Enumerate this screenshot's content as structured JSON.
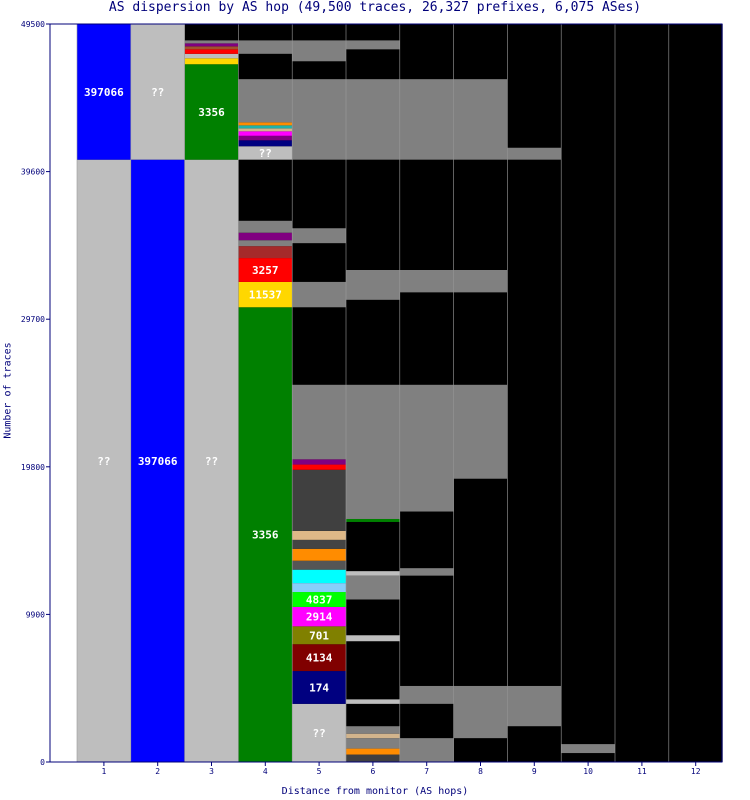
{
  "chart_data": {
    "type": "bar",
    "title": "AS dispersion by AS hop (49,500 traces, 26,327 prefixes, 6,075 ASes)",
    "xlabel": "Distance from monitor (AS hops)",
    "ylabel": "Number of traces",
    "ylim": [
      0,
      49500
    ],
    "y_ticks": [
      "0",
      "9900",
      "19800",
      "29700",
      "39600",
      "49500"
    ],
    "categories": [
      "1",
      "2",
      "3",
      "4",
      "5",
      "6",
      "7",
      "8",
      "9",
      "10",
      "11",
      "12"
    ],
    "background_color": "#000000",
    "frame_color": "#00007a",
    "columns": [
      {
        "hop": "1",
        "segments": [
          {
            "as": "??",
            "color": "#bebebe",
            "from": 0,
            "to": 40400,
            "label": "??"
          },
          {
            "as": "397066",
            "color": "#0000ff",
            "from": 40400,
            "to": 49500,
            "label": "397066"
          }
        ]
      },
      {
        "hop": "2",
        "segments": [
          {
            "as": "397066",
            "color": "#0000ff",
            "from": 0,
            "to": 40400,
            "label": "397066"
          },
          {
            "as": "??",
            "color": "#bebebe",
            "from": 40400,
            "to": 49500,
            "label": "??"
          }
        ]
      },
      {
        "hop": "3",
        "segments": [
          {
            "as": "??",
            "color": "#bebebe",
            "from": 0,
            "to": 40400,
            "label": "??"
          },
          {
            "as": "3356",
            "color": "#008000",
            "from": 40400,
            "to": 46800,
            "label": "3356"
          },
          {
            "as": "",
            "color": "#ffd700",
            "from": 46800,
            "to": 47200,
            "label": ""
          },
          {
            "as": "",
            "color": "#bebebe",
            "from": 47200,
            "to": 47500,
            "label": ""
          },
          {
            "as": "",
            "color": "#ff0000",
            "from": 47500,
            "to": 47800,
            "label": ""
          },
          {
            "as": "",
            "color": "#a0522d",
            "from": 47800,
            "to": 48000,
            "label": ""
          },
          {
            "as": "",
            "color": "#800080",
            "from": 48000,
            "to": 48200,
            "label": ""
          },
          {
            "as": "",
            "color": "#808080",
            "from": 48200,
            "to": 48400,
            "label": ""
          }
        ]
      },
      {
        "hop": "4",
        "segments": [
          {
            "as": "3356",
            "color": "#008000",
            "from": 0,
            "to": 30500,
            "label": "3356"
          },
          {
            "as": "11537",
            "color": "#ffd700",
            "from": 30500,
            "to": 32200,
            "label": "11537"
          },
          {
            "as": "3257",
            "color": "#ff0000",
            "from": 32200,
            "to": 33800,
            "label": "3257"
          },
          {
            "as": "",
            "color": "#a52a2a",
            "from": 33800,
            "to": 34600,
            "label": ""
          },
          {
            "as": "",
            "color": "#808080",
            "from": 34600,
            "to": 35000,
            "label": ""
          },
          {
            "as": "",
            "color": "#800080",
            "from": 35000,
            "to": 35500,
            "label": ""
          },
          {
            "as": "",
            "color": "#808080",
            "from": 35500,
            "to": 36300,
            "label": ""
          },
          {
            "as": "??",
            "color": "#bebebe",
            "from": 40400,
            "to": 41300,
            "label": "??"
          },
          {
            "as": "",
            "color": "#000080",
            "from": 41300,
            "to": 41700,
            "label": ""
          },
          {
            "as": "",
            "color": "#800080",
            "from": 41700,
            "to": 42000,
            "label": ""
          },
          {
            "as": "",
            "color": "#ff00ff",
            "from": 42000,
            "to": 42300,
            "label": ""
          },
          {
            "as": "",
            "color": "#d2b48c",
            "from": 42300,
            "to": 42500,
            "label": ""
          },
          {
            "as": "",
            "color": "#20b2aa",
            "from": 42500,
            "to": 42700,
            "label": ""
          },
          {
            "as": "",
            "color": "#ff8c00",
            "from": 42700,
            "to": 42900,
            "label": ""
          },
          {
            "as": "",
            "color": "#808080",
            "from": 42900,
            "to": 45800,
            "label": ""
          },
          {
            "as": "",
            "color": "#808080",
            "from": 47500,
            "to": 48400,
            "label": ""
          }
        ]
      },
      {
        "hop": "5",
        "segments": [
          {
            "as": "??",
            "color": "#bebebe",
            "from": 0,
            "to": 3900,
            "label": "??"
          },
          {
            "as": "174",
            "color": "#000080",
            "from": 3900,
            "to": 6100,
            "label": "174"
          },
          {
            "as": "4134",
            "color": "#800000",
            "from": 6100,
            "to": 7900,
            "label": "4134"
          },
          {
            "as": "701",
            "color": "#808000",
            "from": 7900,
            "to": 9100,
            "label": "701"
          },
          {
            "as": "2914",
            "color": "#ff00ff",
            "from": 9100,
            "to": 10400,
            "label": "2914"
          },
          {
            "as": "4837",
            "color": "#00ff00",
            "from": 10400,
            "to": 11400,
            "label": "4837"
          },
          {
            "as": "",
            "color": "#87cefa",
            "from": 11400,
            "to": 12000,
            "label": ""
          },
          {
            "as": "",
            "color": "#00ffff",
            "from": 12000,
            "to": 12900,
            "label": ""
          },
          {
            "as": "",
            "color": "#555555",
            "from": 12900,
            "to": 13500,
            "label": ""
          },
          {
            "as": "",
            "color": "#ff8c00",
            "from": 13500,
            "to": 14300,
            "label": ""
          },
          {
            "as": "",
            "color": "#444444",
            "from": 14300,
            "to": 14900,
            "label": ""
          },
          {
            "as": "",
            "color": "#deb887",
            "from": 14900,
            "to": 15500,
            "label": ""
          },
          {
            "as": "",
            "color": "#404040",
            "from": 15500,
            "to": 19600,
            "label": ""
          },
          {
            "as": "",
            "color": "#ff0000",
            "from": 19600,
            "to": 19950,
            "label": ""
          },
          {
            "as": "",
            "color": "#800080",
            "from": 19950,
            "to": 20300,
            "label": ""
          },
          {
            "as": "",
            "color": "#808080",
            "from": 20300,
            "to": 25300,
            "label": ""
          },
          {
            "as": "",
            "color": "#808080",
            "from": 30500,
            "to": 32200,
            "label": ""
          },
          {
            "as": "",
            "color": "#808080",
            "from": 34800,
            "to": 35800,
            "label": ""
          },
          {
            "as": "",
            "color": "#808080",
            "from": 40400,
            "to": 45800,
            "label": ""
          },
          {
            "as": "",
            "color": "#808080",
            "from": 47000,
            "to": 48400,
            "label": ""
          }
        ]
      },
      {
        "hop": "6",
        "segments": [
          {
            "as": "",
            "color": "#404040",
            "from": 0,
            "to": 500,
            "label": ""
          },
          {
            "as": "",
            "color": "#ff8c00",
            "from": 500,
            "to": 900,
            "label": ""
          },
          {
            "as": "",
            "color": "#808080",
            "from": 900,
            "to": 1600,
            "label": ""
          },
          {
            "as": "",
            "color": "#d2b48c",
            "from": 1600,
            "to": 1900,
            "label": ""
          },
          {
            "as": "",
            "color": "#808080",
            "from": 1900,
            "to": 2400,
            "label": ""
          },
          {
            "as": "",
            "color": "#bebebe",
            "from": 3900,
            "to": 4200,
            "label": ""
          },
          {
            "as": "",
            "color": "#bebebe",
            "from": 8100,
            "to": 8500,
            "label": ""
          },
          {
            "as": "",
            "color": "#808080",
            "from": 10900,
            "to": 12500,
            "label": ""
          },
          {
            "as": "",
            "color": "#bebebe",
            "from": 12500,
            "to": 12800,
            "label": ""
          },
          {
            "as": "",
            "color": "#008000",
            "from": 16100,
            "to": 16300,
            "label": ""
          },
          {
            "as": "",
            "color": "#808080",
            "from": 16300,
            "to": 25300,
            "label": ""
          },
          {
            "as": "",
            "color": "#808080",
            "from": 31000,
            "to": 33000,
            "label": ""
          },
          {
            "as": "",
            "color": "#808080",
            "from": 40400,
            "to": 45800,
            "label": ""
          },
          {
            "as": "",
            "color": "#808080",
            "from": 47800,
            "to": 48400,
            "label": ""
          }
        ]
      },
      {
        "hop": "7",
        "segments": [
          {
            "as": "",
            "color": "#808080",
            "from": 0,
            "to": 1600,
            "label": ""
          },
          {
            "as": "",
            "color": "#808080",
            "from": 3900,
            "to": 5100,
            "label": ""
          },
          {
            "as": "",
            "color": "#808080",
            "from": 12500,
            "to": 13000,
            "label": ""
          },
          {
            "as": "",
            "color": "#808080",
            "from": 16800,
            "to": 25300,
            "label": ""
          },
          {
            "as": "",
            "color": "#808080",
            "from": 31500,
            "to": 33000,
            "label": ""
          },
          {
            "as": "",
            "color": "#808080",
            "from": 40400,
            "to": 45800,
            "label": ""
          }
        ]
      },
      {
        "hop": "8",
        "segments": [
          {
            "as": "",
            "color": "#808080",
            "from": 1600,
            "to": 5100,
            "label": ""
          },
          {
            "as": "",
            "color": "#808080",
            "from": 19000,
            "to": 25300,
            "label": ""
          },
          {
            "as": "",
            "color": "#808080",
            "from": 31500,
            "to": 33000,
            "label": ""
          },
          {
            "as": "",
            "color": "#808080",
            "from": 40400,
            "to": 45800,
            "label": ""
          }
        ]
      },
      {
        "hop": "9",
        "segments": [
          {
            "as": "",
            "color": "#808080",
            "from": 2400,
            "to": 5100,
            "label": ""
          },
          {
            "as": "",
            "color": "#808080",
            "from": 40400,
            "to": 41200,
            "label": ""
          }
        ]
      },
      {
        "hop": "10",
        "segments": [
          {
            "as": "",
            "color": "#808080",
            "from": 600,
            "to": 1200,
            "label": ""
          }
        ]
      },
      {
        "hop": "11",
        "segments": []
      },
      {
        "hop": "12",
        "segments": []
      }
    ]
  }
}
